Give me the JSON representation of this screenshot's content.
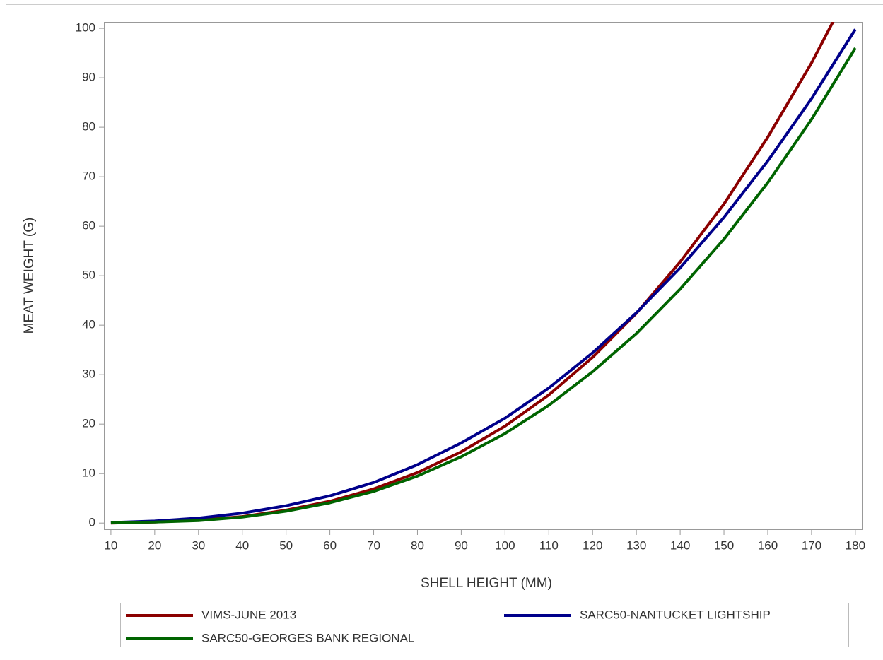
{
  "chart_data": {
    "type": "line",
    "x_label": "SHELL HEIGHT (MM)",
    "y_label": "MEAT WEIGHT (G)",
    "x": [
      10,
      20,
      30,
      40,
      50,
      60,
      70,
      80,
      90,
      100,
      110,
      120,
      130,
      140,
      150,
      160,
      170,
      180
    ],
    "series": [
      {
        "name": "VIMS-JUNE 2013",
        "color": "#8b0000",
        "values": [
          0,
          0.2,
          0.6,
          1.3,
          2.6,
          4.4,
          6.9,
          10.2,
          14.4,
          19.6,
          25.9,
          33.5,
          42.4,
          52.8,
          64.5,
          78,
          93,
          110
        ]
      },
      {
        "name": "SARC50-NANTUCKET LIGHTSHIP",
        "color": "#00008b",
        "values": [
          0.1,
          0.4,
          1,
          2,
          3.5,
          5.5,
          8.2,
          11.8,
          16.2,
          21.2,
          27.3,
          34.4,
          42.5,
          51.6,
          61.8,
          73.2,
          85.8,
          99.8
        ]
      },
      {
        "name": "SARC50-GEORGES BANK REGIONAL",
        "color": "#006400",
        "values": [
          0.1,
          0.2,
          0.5,
          1.2,
          2.4,
          4.1,
          6.4,
          9.5,
          13.4,
          18.1,
          23.8,
          30.6,
          38.3,
          47.3,
          57.4,
          68.8,
          81.6,
          96
        ]
      }
    ],
    "xlim": [
      8.4,
      181.8
    ],
    "ylim": [
      -1.4,
      101.3
    ],
    "xticks": [
      10,
      20,
      30,
      40,
      50,
      60,
      70,
      80,
      90,
      100,
      110,
      120,
      130,
      140,
      150,
      160,
      170,
      180
    ],
    "yticks": [
      0,
      10,
      20,
      30,
      40,
      50,
      60,
      70,
      80,
      90,
      100
    ],
    "legend": "bottom"
  }
}
